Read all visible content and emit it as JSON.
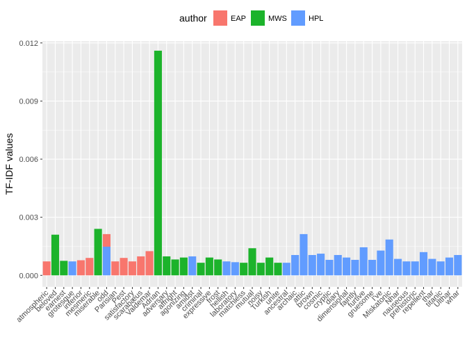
{
  "chart_data": {
    "type": "bar",
    "xlabel": "",
    "ylabel": "TF-IDF values",
    "ylim": [
      -0.0006,
      0.0121
    ],
    "yticks": [
      0.0,
      0.003,
      0.006,
      0.009,
      0.012
    ],
    "ytick_labels": [
      "0.000",
      "0.003",
      "0.006",
      "0.009",
      "0.012"
    ],
    "grid": true,
    "legend": {
      "title": "author",
      "placement": "top",
      "entries": [
        {
          "name": "EAP",
          "color": "#F8766D"
        },
        {
          "name": "MWS",
          "color": "#1CB32B"
        },
        {
          "name": "HPL",
          "color": "#619CFF"
        }
      ]
    },
    "categories": [
      "atmospheric",
      "beloved",
      "earnest",
      "grotesque",
      "inferior",
      "mesmeric",
      "miserable",
      "odd",
      "Parisian",
      "Pest",
      "satisfactory",
      "scarabæus",
      "Valdemar",
      "Adrian",
      "adversary",
      "affright",
      "agonizing",
      "amidst",
      "criminal",
      "expressive",
      "frost",
      "hellish",
      "laboratory",
      "matchless",
      "mutual",
      "noisy",
      "Turkish",
      "unite",
      "ancestral",
      "archaic",
      "attic",
      "brown",
      "cosmic",
      "cryptic",
      "diary",
      "dimensional",
      "faintly",
      "furtive",
      "gruesome",
      "I've",
      "Miskatonic",
      "Nhar",
      "nauseous",
      "prehistoric",
      "repellent",
      "thar",
      "titanic",
      "Ulthar",
      "whar"
    ],
    "bars": [
      {
        "word": "atmospheric",
        "segments": [
          {
            "author": "EAP",
            "value": 0.00072
          }
        ]
      },
      {
        "word": "beloved",
        "segments": [
          {
            "author": "MWS",
            "value": 0.0021
          }
        ]
      },
      {
        "word": "earnest",
        "segments": [
          {
            "author": "MWS",
            "value": 0.00075
          }
        ]
      },
      {
        "word": "grotesque",
        "segments": [
          {
            "author": "HPL",
            "value": 0.00072
          }
        ]
      },
      {
        "word": "inferior",
        "segments": [
          {
            "author": "EAP",
            "value": 0.00078
          }
        ]
      },
      {
        "word": "mesmeric",
        "segments": [
          {
            "author": "EAP",
            "value": 0.0009
          }
        ]
      },
      {
        "word": "miserable",
        "segments": [
          {
            "author": "MWS",
            "value": 0.0024
          }
        ]
      },
      {
        "word": "odd",
        "segments": [
          {
            "author": "HPL",
            "value": 0.00148
          },
          {
            "author": "EAP",
            "value": 0.00065
          }
        ]
      },
      {
        "word": "Parisian",
        "segments": [
          {
            "author": "EAP",
            "value": 0.00072
          }
        ]
      },
      {
        "word": "Pest",
        "segments": [
          {
            "author": "EAP",
            "value": 0.0009
          }
        ]
      },
      {
        "word": "satisfactory",
        "segments": [
          {
            "author": "EAP",
            "value": 0.00072
          }
        ]
      },
      {
        "word": "scarabæus",
        "segments": [
          {
            "author": "EAP",
            "value": 0.00098
          }
        ]
      },
      {
        "word": "Valdemar",
        "segments": [
          {
            "author": "EAP",
            "value": 0.00125
          }
        ]
      },
      {
        "word": "Adrian",
        "segments": [
          {
            "author": "MWS",
            "value": 0.0116
          }
        ]
      },
      {
        "word": "adversary",
        "segments": [
          {
            "author": "MWS",
            "value": 0.00098
          }
        ]
      },
      {
        "word": "affright",
        "segments": [
          {
            "author": "MWS",
            "value": 0.00082
          }
        ]
      },
      {
        "word": "agonizing",
        "segments": [
          {
            "author": "MWS",
            "value": 0.00092
          }
        ]
      },
      {
        "word": "amidst",
        "segments": [
          {
            "author": "HPL",
            "value": 0.00098
          }
        ]
      },
      {
        "word": "criminal",
        "segments": [
          {
            "author": "MWS",
            "value": 0.00065
          }
        ]
      },
      {
        "word": "expressive",
        "segments": [
          {
            "author": "MWS",
            "value": 0.00092
          }
        ]
      },
      {
        "word": "frost",
        "segments": [
          {
            "author": "MWS",
            "value": 0.00082
          }
        ]
      },
      {
        "word": "hellish",
        "segments": [
          {
            "author": "HPL",
            "value": 0.00072
          }
        ]
      },
      {
        "word": "laboratory",
        "segments": [
          {
            "author": "HPL",
            "value": 0.00068
          }
        ]
      },
      {
        "word": "matchless",
        "segments": [
          {
            "author": "MWS",
            "value": 0.00065
          }
        ]
      },
      {
        "word": "mutual",
        "segments": [
          {
            "author": "MWS",
            "value": 0.0014
          }
        ]
      },
      {
        "word": "noisy",
        "segments": [
          {
            "author": "MWS",
            "value": 0.00065
          }
        ]
      },
      {
        "word": "Turkish",
        "segments": [
          {
            "author": "MWS",
            "value": 0.00092
          }
        ]
      },
      {
        "word": "unite",
        "segments": [
          {
            "author": "MWS",
            "value": 0.00065
          }
        ]
      },
      {
        "word": "ancestral",
        "segments": [
          {
            "author": "HPL",
            "value": 0.00065
          }
        ]
      },
      {
        "word": "archaic",
        "segments": [
          {
            "author": "HPL",
            "value": 0.00105
          }
        ]
      },
      {
        "word": "attic",
        "segments": [
          {
            "author": "HPL",
            "value": 0.00213
          }
        ]
      },
      {
        "word": "brown",
        "segments": [
          {
            "author": "HPL",
            "value": 0.00105
          }
        ]
      },
      {
        "word": "cosmic",
        "segments": [
          {
            "author": "HPL",
            "value": 0.00112
          }
        ]
      },
      {
        "word": "cryptic",
        "segments": [
          {
            "author": "HPL",
            "value": 0.0008
          }
        ]
      },
      {
        "word": "diary",
        "segments": [
          {
            "author": "HPL",
            "value": 0.00105
          }
        ]
      },
      {
        "word": "dimensional",
        "segments": [
          {
            "author": "HPL",
            "value": 0.00092
          }
        ]
      },
      {
        "word": "faintly",
        "segments": [
          {
            "author": "HPL",
            "value": 0.0008
          }
        ]
      },
      {
        "word": "furtive",
        "segments": [
          {
            "author": "HPL",
            "value": 0.00145
          }
        ]
      },
      {
        "word": "gruesome",
        "segments": [
          {
            "author": "HPL",
            "value": 0.0008
          }
        ]
      },
      {
        "word": "I've",
        "segments": [
          {
            "author": "HPL",
            "value": 0.00128
          }
        ]
      },
      {
        "word": "Miskatonic",
        "segments": [
          {
            "author": "HPL",
            "value": 0.00185
          }
        ]
      },
      {
        "word": "Nhar",
        "segments": [
          {
            "author": "HPL",
            "value": 0.00085
          }
        ]
      },
      {
        "word": "nauseous",
        "segments": [
          {
            "author": "HPL",
            "value": 0.00072
          }
        ]
      },
      {
        "word": "prehistoric",
        "segments": [
          {
            "author": "HPL",
            "value": 0.00072
          }
        ]
      },
      {
        "word": "repellent",
        "segments": [
          {
            "author": "HPL",
            "value": 0.0012
          }
        ]
      },
      {
        "word": "thar",
        "segments": [
          {
            "author": "HPL",
            "value": 0.00085
          }
        ]
      },
      {
        "word": "titanic",
        "segments": [
          {
            "author": "HPL",
            "value": 0.00072
          }
        ]
      },
      {
        "word": "Ulthar",
        "segments": [
          {
            "author": "HPL",
            "value": 0.00092
          }
        ]
      },
      {
        "word": "whar",
        "segments": [
          {
            "author": "HPL",
            "value": 0.00105
          }
        ]
      }
    ]
  }
}
